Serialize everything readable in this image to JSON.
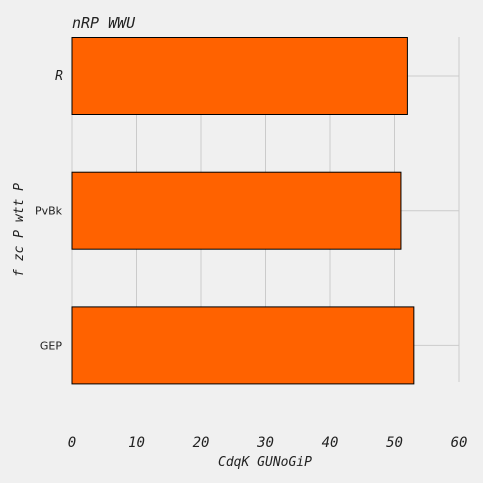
{
  "chart_data": {
    "type": "bar",
    "orientation": "horizontal",
    "title": "nRP  WWU",
    "xlabel": "CdqK GUNoGiP",
    "ylabel": "f zc P wtt P",
    "categories": [
      "R",
      "PvBk",
      "GEP"
    ],
    "values": [
      52,
      51,
      53
    ],
    "xlim": [
      0,
      60
    ],
    "xticks": [
      0,
      10,
      20,
      30,
      40,
      50,
      60
    ],
    "grid": true,
    "bar_color": "#ff6200",
    "bar_edge_color": "#000000",
    "background": "#f0f0f0"
  }
}
